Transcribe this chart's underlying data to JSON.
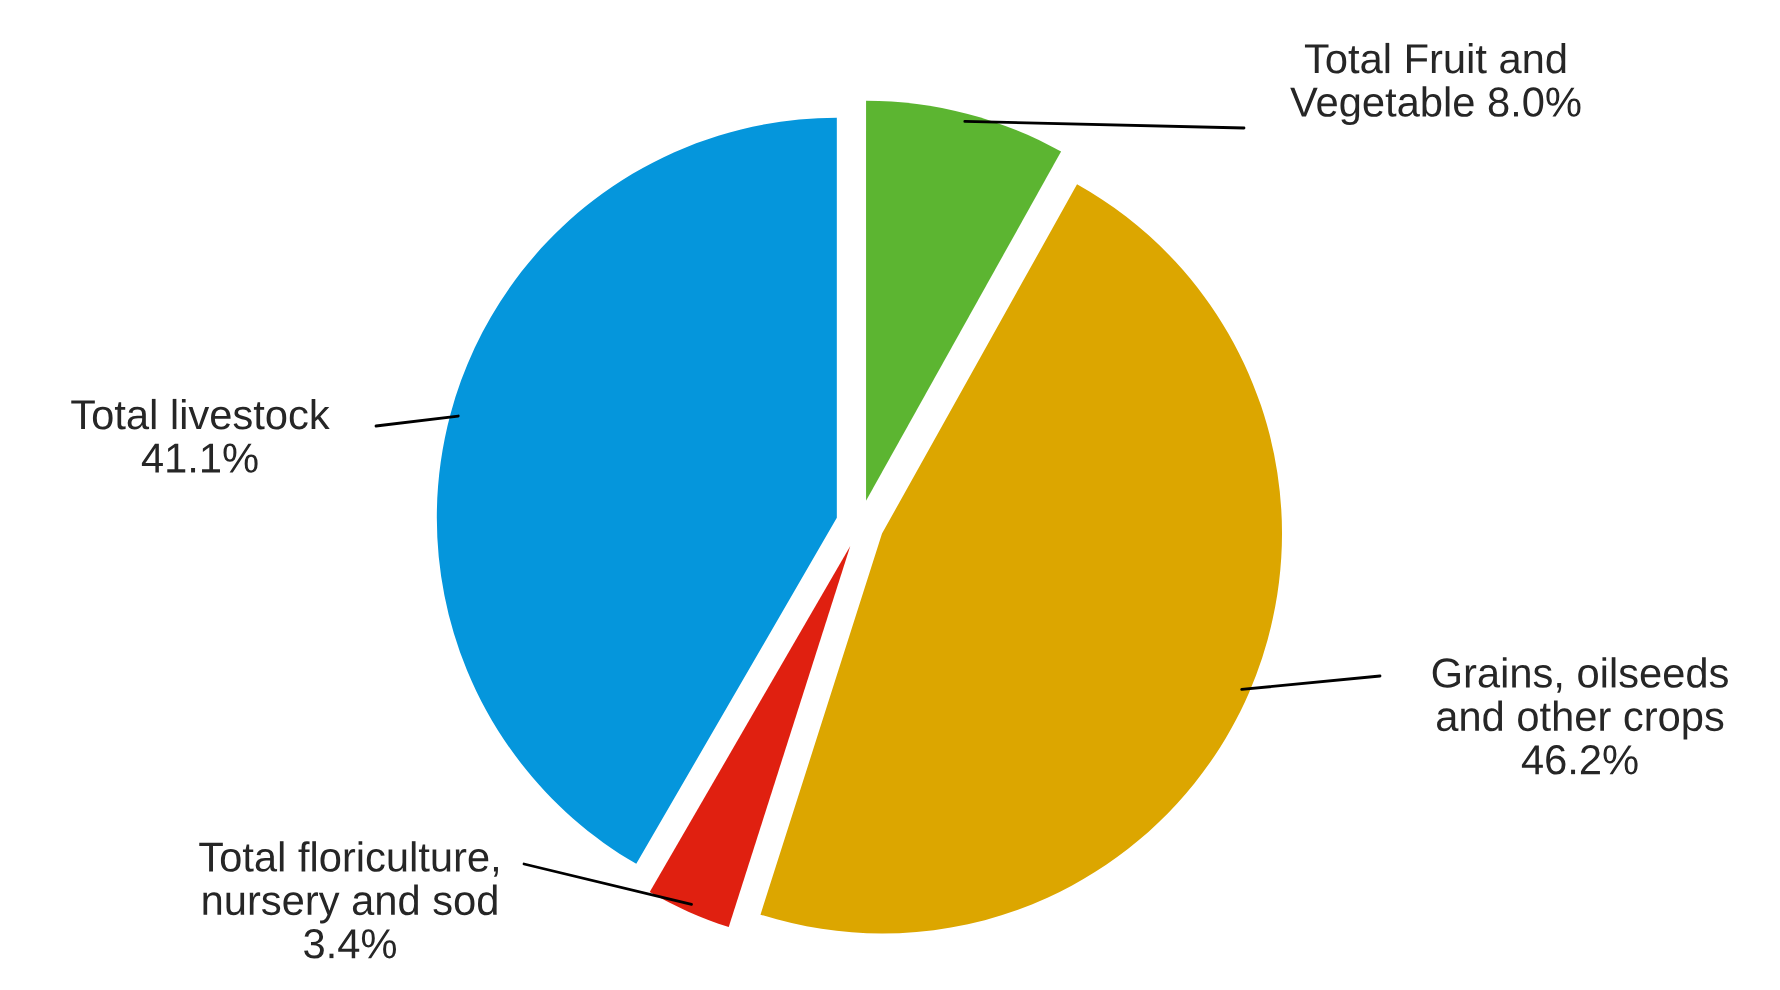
{
  "chart_data": {
    "type": "pie",
    "categories": [
      "Total Fruit and\nVegetable",
      "Grains, oilseeds\nand other crops",
      "Total floriculture,\nnursery and sod",
      "Total livestock"
    ],
    "values": [
      8.0,
      46.2,
      3.4,
      41.1
    ],
    "value_labels": [
      "8.0%",
      "46.2%",
      "3.4%",
      "41.1%"
    ],
    "colors": [
      "#5cb531",
      "#dca600",
      "#e02010",
      "#0596dc"
    ]
  }
}
